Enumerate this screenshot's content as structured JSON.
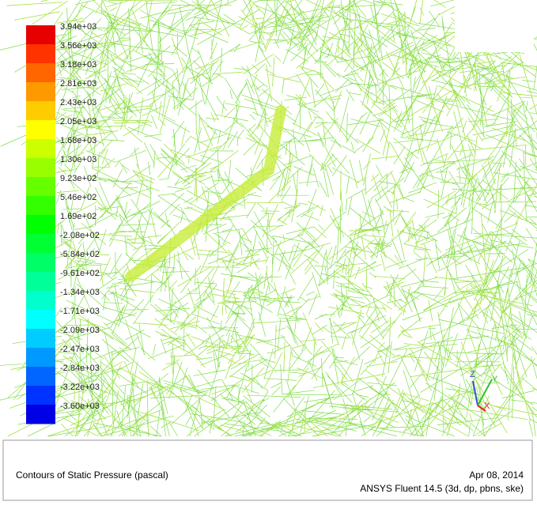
{
  "colorbar": {
    "labels": [
      "3.94e+03",
      "3.56e+03",
      "3.18e+03",
      "2.81e+03",
      "2.43e+03",
      "2.05e+03",
      "1.68e+03",
      "1.30e+03",
      "9.23e+02",
      "5.46e+02",
      "1.69e+02",
      "-2.08e+02",
      "-5.84e+02",
      "-9.61e+02",
      "-1.34e+03",
      "-1.71e+03",
      "-2.09e+03",
      "-2.47e+03",
      "-2.84e+03",
      "-3.22e+03",
      "-3.60e+03"
    ]
  },
  "axes": {
    "z": "Z",
    "y": "Y",
    "x": "X"
  },
  "caption": {
    "title": "Contours of Static Pressure (pascal)",
    "date": "Apr 08, 2014",
    "software": "ANSYS Fluent 14.5 (3d, dp, pbns, ske)"
  }
}
